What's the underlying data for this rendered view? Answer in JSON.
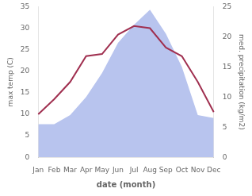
{
  "chart_data": {
    "type": "line",
    "categories": [
      "Jan",
      "Feb",
      "Mar",
      "Apr",
      "May",
      "Jun",
      "Jul",
      "Aug",
      "Sep",
      "Oct",
      "Nov",
      "Dec"
    ],
    "xlabel": "date (month)",
    "ylabel": "max temp (C)",
    "y2label": "med. precipitation (kg/m2)",
    "series": [
      {
        "type": "line",
        "color": "#a03050",
        "values": [
          10.0,
          13.5,
          17.5,
          23.5,
          24.0,
          28.5,
          30.5,
          30.0,
          25.5,
          23.5,
          17.5,
          10.5
        ]
      },
      {
        "type": "area",
        "color": "#b8c4ee",
        "axis": "y2",
        "values": [
          5.5,
          5.5,
          7.0,
          10.0,
          14.0,
          19.0,
          22.0,
          24.5,
          20.5,
          15.0,
          7.0,
          6.5
        ]
      }
    ],
    "ylim": [
      0,
      35
    ],
    "yticks": [
      0,
      5,
      10,
      15,
      20,
      25,
      30,
      35
    ],
    "y2lim": [
      0,
      25
    ],
    "y2ticks": [
      0,
      5,
      10,
      15,
      20,
      25
    ],
    "grid": false
  }
}
